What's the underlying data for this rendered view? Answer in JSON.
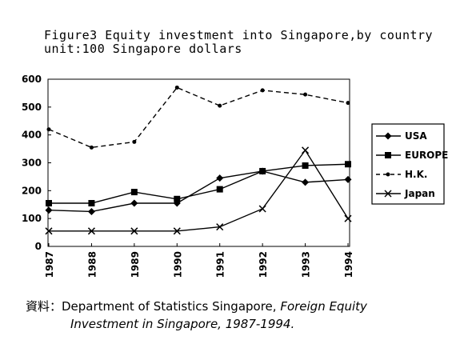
{
  "chart_data": {
    "type": "line",
    "title": "Figure3 Equity investment into Singapore,by country",
    "subtitle": "unit:100 Singapore dollars",
    "categories": [
      "1987",
      "1988",
      "1989",
      "1990",
      "1991",
      "1992",
      "1993",
      "1994"
    ],
    "ylim": [
      0,
      600
    ],
    "yticks": [
      0,
      100,
      200,
      300,
      400,
      500,
      600
    ],
    "grid": false,
    "legend_position": "right",
    "series": [
      {
        "name": "USA",
        "values": [
          130,
          125,
          155,
          155,
          245,
          270,
          230,
          240
        ],
        "marker": "diamond",
        "dash": "solid"
      },
      {
        "name": "EUROPE",
        "values": [
          155,
          155,
          195,
          170,
          205,
          270,
          290,
          295
        ],
        "marker": "square",
        "dash": "solid"
      },
      {
        "name": "H.K.",
        "values": [
          420,
          355,
          375,
          570,
          505,
          560,
          545,
          515
        ],
        "marker": "dot",
        "dash": "dashed"
      },
      {
        "name": "Japan",
        "values": [
          55,
          55,
          55,
          55,
          70,
          135,
          345,
          100
        ],
        "marker": "cross",
        "dash": "solid"
      }
    ]
  },
  "source": {
    "prefix": "資料：Department of Statistics Singapore, ",
    "italic1": "Foreign Equity",
    "italic2": "Investment in Singapore, 1987-1994."
  }
}
